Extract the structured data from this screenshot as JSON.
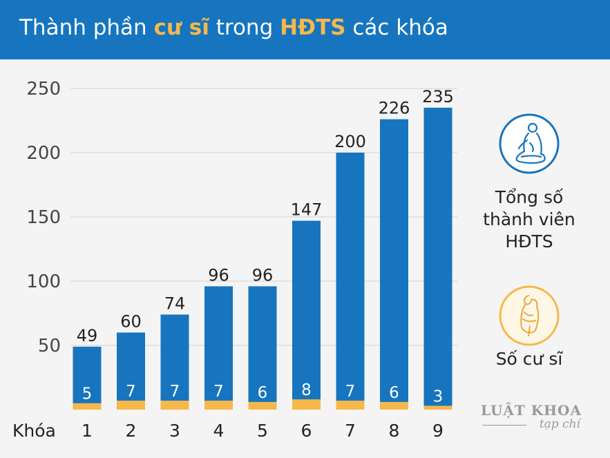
{
  "header": {
    "title_part1": "Thành phần ",
    "title_hl1": "cư sĩ",
    "title_part2": " trong ",
    "title_hl2": "HĐTS",
    "title_part3": " các khóa"
  },
  "legend": {
    "total_label_line1": "Tổng số",
    "total_label_line2": "thành viên",
    "total_label_line3": "HĐTS",
    "lay_label": "Số cư sĩ",
    "total_icon": "monk-meditating-icon",
    "lay_icon": "layperson-praying-icon"
  },
  "logo": {
    "line1": "LUẬT KHOA",
    "line2": "tạp chí"
  },
  "colors": {
    "header": "#1675be",
    "bar_total": "#1675be",
    "bar_lay": "#f7b84b",
    "highlight": "#f7b84b"
  },
  "chart_data": {
    "type": "bar",
    "xlabel": "Khóa",
    "categories": [
      "1",
      "2",
      "3",
      "4",
      "5",
      "6",
      "7",
      "8",
      "9"
    ],
    "series": [
      {
        "name": "Tổng số thành viên HĐTS",
        "values": [
          49,
          60,
          74,
          96,
          96,
          147,
          200,
          226,
          235
        ]
      },
      {
        "name": "Số cư sĩ",
        "values": [
          5,
          7,
          7,
          7,
          6,
          8,
          7,
          6,
          3
        ]
      }
    ],
    "yticks": [
      50,
      100,
      150,
      200,
      250
    ],
    "ylim": [
      0,
      250
    ],
    "grid": true
  }
}
